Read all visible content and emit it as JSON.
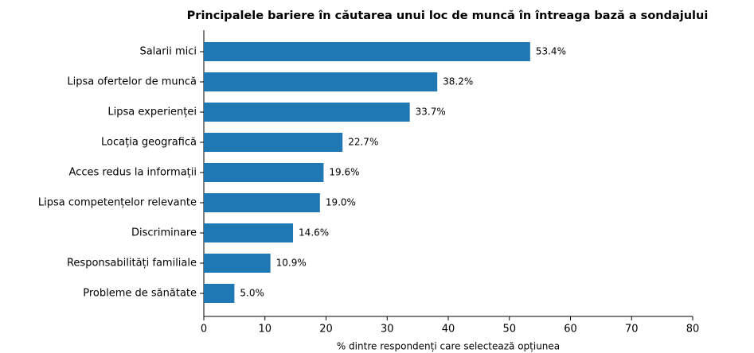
{
  "chart_data": {
    "type": "bar",
    "orientation": "horizontal",
    "title": "Principalele bariere în căutarea unui loc de muncă în întreaga bază a sondajului",
    "xlabel": "% dintre respondenți care selectează opțiunea",
    "categories": [
      "Salarii mici",
      "Lipsa ofertelor de muncă",
      "Lipsa experienței",
      "Locația geografică",
      "Acces redus la informații",
      "Lipsa competențelor relevante",
      "Discriminare",
      "Responsabilități familiale",
      "Probleme de sănătate"
    ],
    "values": [
      53.4,
      38.2,
      33.7,
      22.7,
      19.6,
      19.0,
      14.6,
      10.9,
      5.0
    ],
    "value_labels": [
      "53.4%",
      "38.2%",
      "33.7%",
      "22.7%",
      "19.6%",
      "19.0%",
      "14.6%",
      "10.9%",
      "5.0%"
    ],
    "color": "#1f77b4",
    "xlim": [
      0,
      80
    ],
    "xticks": [
      0,
      10,
      20,
      30,
      40,
      50,
      60,
      70,
      80
    ],
    "grid": false
  }
}
